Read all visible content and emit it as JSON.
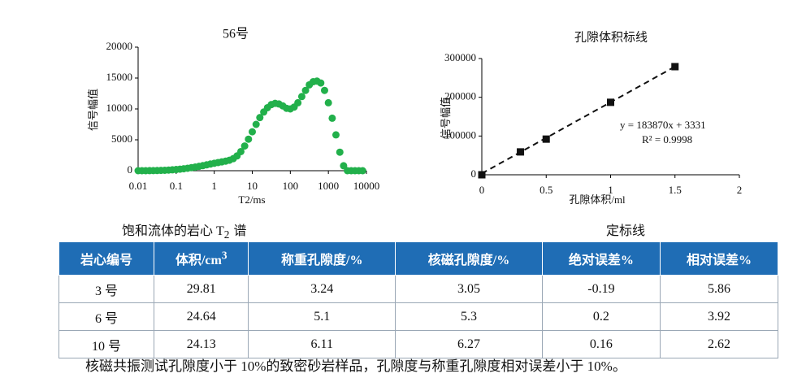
{
  "chart_data": [
    {
      "type": "scatter",
      "title": "56号",
      "x_label": "T2/ms",
      "y_label": "信号幅值",
      "xscale": "log",
      "x": [
        0.01,
        0.0126,
        0.0158,
        0.02,
        0.0251,
        0.0316,
        0.0398,
        0.0501,
        0.0631,
        0.0794,
        0.1,
        0.126,
        0.158,
        0.2,
        0.251,
        0.316,
        0.398,
        0.501,
        0.631,
        0.794,
        1,
        1.26,
        1.58,
        2,
        2.51,
        3.16,
        3.98,
        5.01,
        6.31,
        7.94,
        10,
        12.6,
        15.8,
        20,
        25.1,
        31.6,
        39.8,
        50.1,
        63.1,
        79.4,
        100,
        126,
        158,
        200,
        251,
        316,
        398,
        501,
        631,
        794,
        1000,
        1260,
        1580,
        2000,
        2510,
        3160,
        3980,
        5010,
        6310,
        7940
      ],
      "series": [
        {
          "color": "#22b04b",
          "values": [
            0,
            0,
            0,
            10,
            20,
            30,
            50,
            70,
            100,
            140,
            190,
            250,
            320,
            400,
            490,
            590,
            700,
            820,
            950,
            1080,
            1200,
            1320,
            1430,
            1550,
            1700,
            1950,
            2400,
            3100,
            4000,
            5100,
            6300,
            7500,
            8600,
            9500,
            10200,
            10700,
            10900,
            10800,
            10500,
            10100,
            10000,
            10300,
            11000,
            12000,
            13000,
            13900,
            14400,
            14500,
            14200,
            13000,
            11000,
            8500,
            5800,
            3000,
            800,
            0,
            0,
            0,
            0,
            0
          ]
        }
      ],
      "xlim": [
        0.01,
        10000
      ],
      "xticks": [
        0.01,
        0.1,
        1,
        10,
        100,
        1000,
        10000
      ],
      "ylim": [
        0,
        20000
      ],
      "yticks": [
        0,
        5000,
        10000,
        15000,
        20000
      ]
    },
    {
      "type": "scatter",
      "title": "孔隙体积标线",
      "x_label": "孔隙体积/ml",
      "y_label": "信号幅值",
      "x": [
        0,
        0.3,
        0.5,
        1,
        1.5
      ],
      "series": [
        {
          "color": "#111111",
          "values": [
            0,
            59000,
            92000,
            187000,
            279000
          ]
        }
      ],
      "trendline": {
        "slope": 183870,
        "intercept": 3331,
        "label": "y = 183870x + 3331",
        "r2_label": "R² = 0.9998"
      },
      "xlim": [
        0,
        2
      ],
      "xticks": [
        0,
        0.5,
        1,
        1.5,
        2
      ],
      "ylim": [
        0,
        300000
      ],
      "yticks": [
        0,
        100000,
        200000,
        300000
      ]
    }
  ],
  "captions": [
    {
      "text": "饱和流体的岩心 T",
      "sub": "2",
      "tail": "谱"
    },
    {
      "text": "定标线"
    }
  ],
  "table": {
    "header": [
      "岩心编号",
      {
        "text": "体积/cm",
        "sup": "3"
      },
      "称重孔隙度/%",
      "核磁孔隙度/%",
      "绝对误差%",
      "相对误差%"
    ],
    "rows": [
      [
        "3 号",
        "29.81",
        "3.24",
        "3.05",
        "-0.19",
        "5.86"
      ],
      [
        "6 号",
        "24.64",
        "5.1",
        "5.3",
        "0.2",
        "3.92"
      ],
      [
        "10 号",
        "24.13",
        "6.11",
        "6.27",
        "0.16",
        "2.62"
      ]
    ]
  },
  "footer": "核磁共振测试孔隙度小于 10%的致密砂岩样品，孔隙度与称重孔隙度相对误差小于 10%。"
}
